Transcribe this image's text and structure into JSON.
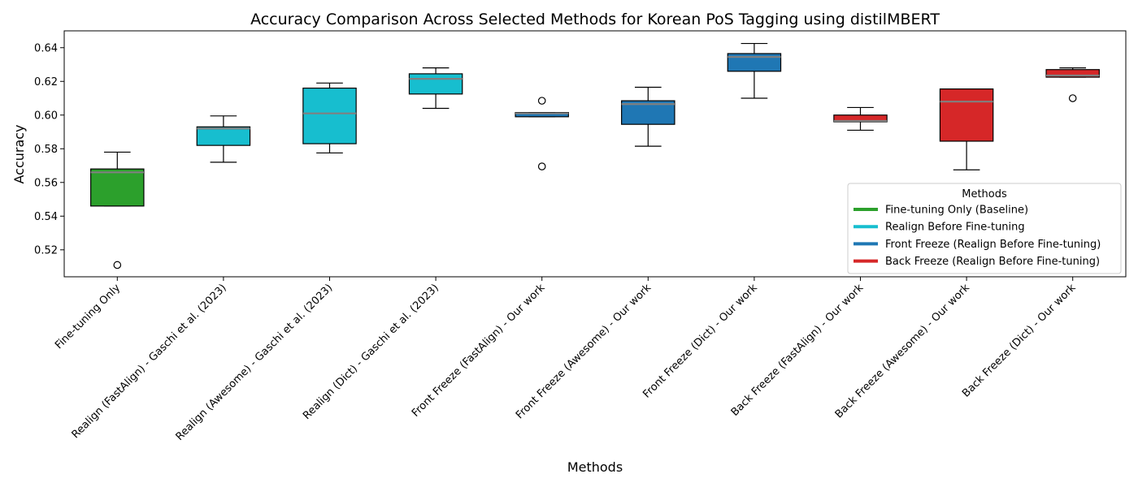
{
  "chart_data": {
    "type": "box",
    "title": "Accuracy Comparison Across Selected Methods for Korean PoS Tagging using distilMBERT",
    "xlabel": "Methods",
    "ylabel": "Accuracy",
    "ylim": [
      0.504,
      0.65
    ],
    "yticks": [
      "0.52",
      "0.54",
      "0.56",
      "0.58",
      "0.60",
      "0.62",
      "0.64"
    ],
    "grid": false,
    "median_color": "#808080",
    "categories": [
      "Fine-tuning Only",
      "Realign (FastAlign) - Gaschi et al. (2023)",
      "Realign (Awesome) - Gaschi et al. (2023)",
      "Realign (Dict) - Gaschi et al. (2023)",
      "Front Freeze (FastAlign) - Our work",
      "Front Freeze (Awesome) - Our work",
      "Front Freeze (Dict) - Our work",
      "Back Freeze (FastAlign) - Our work",
      "Back Freeze (Awesome) - Our work",
      "Back Freeze (Dict) - Our work"
    ],
    "boxes": [
      {
        "group": 0,
        "whisker_low": 0.546,
        "q1": 0.546,
        "median": 0.566,
        "q3": 0.568,
        "whisker_high": 0.578,
        "outliers": [
          0.511
        ]
      },
      {
        "group": 1,
        "whisker_low": 0.572,
        "q1": 0.582,
        "median": 0.592,
        "q3": 0.593,
        "whisker_high": 0.5995,
        "outliers": []
      },
      {
        "group": 1,
        "whisker_low": 0.5775,
        "q1": 0.583,
        "median": 0.601,
        "q3": 0.616,
        "whisker_high": 0.619,
        "outliers": []
      },
      {
        "group": 1,
        "whisker_low": 0.604,
        "q1": 0.6125,
        "median": 0.6215,
        "q3": 0.6245,
        "whisker_high": 0.628,
        "outliers": []
      },
      {
        "group": 2,
        "whisker_low": 0.599,
        "q1": 0.599,
        "median": 0.601,
        "q3": 0.6015,
        "whisker_high": 0.6015,
        "outliers": [
          0.6085,
          0.5695
        ]
      },
      {
        "group": 2,
        "whisker_low": 0.5815,
        "q1": 0.5945,
        "median": 0.6065,
        "q3": 0.6085,
        "whisker_high": 0.6165,
        "outliers": []
      },
      {
        "group": 2,
        "whisker_low": 0.61,
        "q1": 0.626,
        "median": 0.6345,
        "q3": 0.6365,
        "whisker_high": 0.6425,
        "outliers": []
      },
      {
        "group": 3,
        "whisker_low": 0.591,
        "q1": 0.596,
        "median": 0.5965,
        "q3": 0.6,
        "whisker_high": 0.6045,
        "outliers": []
      },
      {
        "group": 3,
        "whisker_low": 0.5675,
        "q1": 0.5845,
        "median": 0.608,
        "q3": 0.6155,
        "whisker_high": 0.6155,
        "outliers": []
      },
      {
        "group": 3,
        "whisker_low": 0.6225,
        "q1": 0.6225,
        "median": 0.6235,
        "q3": 0.627,
        "whisker_high": 0.628,
        "outliers": [
          0.61
        ]
      }
    ],
    "legend": {
      "title": "Methods",
      "placement": "lower-right",
      "items": [
        {
          "label": "Fine-tuning Only (Baseline)",
          "color": "#2ca02c"
        },
        {
          "label": "Realign Before Fine-tuning",
          "color": "#17becf"
        },
        {
          "label": "Front Freeze (Realign Before Fine-tuning)",
          "color": "#1f77b4"
        },
        {
          "label": "Back Freeze (Realign Before Fine-tuning)",
          "color": "#d62728"
        }
      ]
    }
  }
}
